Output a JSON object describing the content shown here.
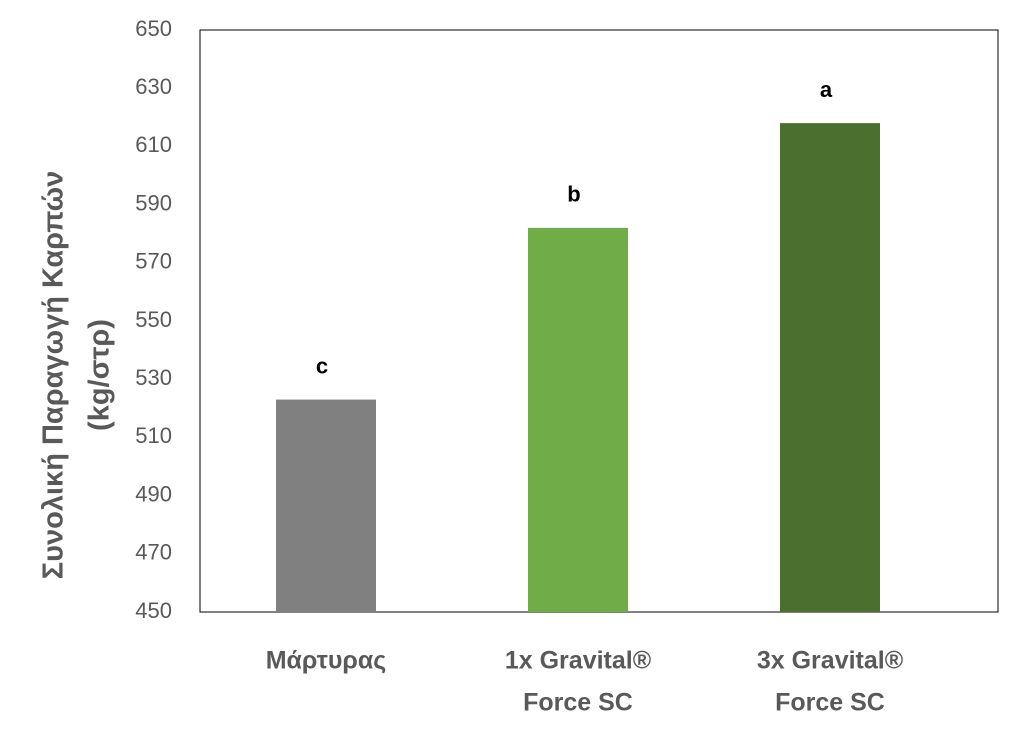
{
  "chart_data": {
    "type": "bar",
    "ylabel": [
      "Συνολική Παραγωγή Καρπών",
      "(kg/στρ)"
    ],
    "categories": [
      [
        "Μάρτυρας"
      ],
      [
        "1x Gravital®",
        "Force SC"
      ],
      [
        "3x Gravital®",
        "Force SC"
      ]
    ],
    "values": [
      523,
      582,
      618
    ],
    "annotations": [
      "c",
      "b",
      "a"
    ],
    "colors": [
      "#808080",
      "#70ad47",
      "#4a7030"
    ],
    "ylim": [
      450,
      650
    ],
    "yticks": [
      450,
      470,
      490,
      510,
      530,
      550,
      570,
      590,
      610,
      630,
      650
    ]
  }
}
